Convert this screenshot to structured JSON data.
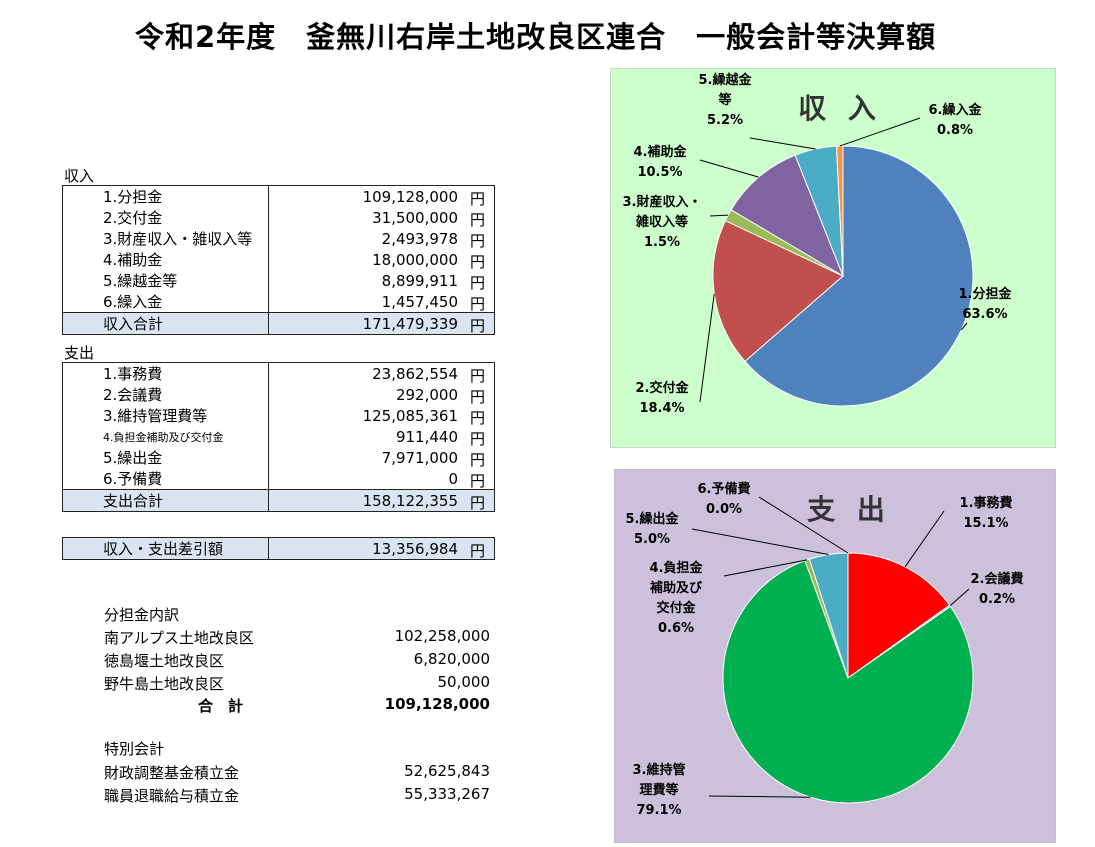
{
  "title": "令和2年度　釜無川右岸土地改良区連合　一般会計等決算額",
  "unit": "円",
  "income": {
    "label": "収入",
    "items": [
      {
        "name": "1.分担金",
        "amount": "109,128,000"
      },
      {
        "name": "2.交付金",
        "amount": "31,500,000"
      },
      {
        "name": "3.財産収入・雑収入等",
        "amount": "2,493,978"
      },
      {
        "name": "4.補助金",
        "amount": "18,000,000"
      },
      {
        "name": "5.繰越金等",
        "amount": "8,899,911"
      },
      {
        "name": "6.繰入金",
        "amount": "1,457,450"
      }
    ],
    "total_label": "収入合計",
    "total": "171,479,339"
  },
  "expense": {
    "label": "支出",
    "items": [
      {
        "name": "1.事務費",
        "amount": "23,862,554"
      },
      {
        "name": "2.会議費",
        "amount": "292,000"
      },
      {
        "name": "3.維持管理費等",
        "amount": "125,085,361"
      },
      {
        "name": "4.負担金補助及び交付金",
        "amount": "911,440"
      },
      {
        "name": "5.繰出金",
        "amount": "7,971,000"
      },
      {
        "name": "6.予備費",
        "amount": "0"
      }
    ],
    "total_label": "支出合計",
    "total": "158,122,355"
  },
  "balance": {
    "label": "収入・支出差引額",
    "amount": "13,356,984"
  },
  "share_breakdown": {
    "heading": "分担金内訳",
    "items": [
      {
        "name": "南アルプス土地改良区",
        "amount": "102,258,000"
      },
      {
        "name": "徳島堰土地改良区",
        "amount": "6,820,000"
      },
      {
        "name": "野牛島土地改良区",
        "amount": "50,000"
      }
    ],
    "total_label": "合　計",
    "total": "109,128,000"
  },
  "special": {
    "heading": "特別会計",
    "items": [
      {
        "name": "財政調整基金積立金",
        "amount": "52,625,843"
      },
      {
        "name": "職員退職給与積立金",
        "amount": "55,333,267"
      }
    ]
  },
  "chart_data": [
    {
      "type": "pie",
      "title": "収 入",
      "background": "#ccffcc",
      "slices": [
        {
          "label_lines": [
            "1.分担金"
          ],
          "pct": "63.6%",
          "value": 63.6,
          "color": "#4f81bd"
        },
        {
          "label_lines": [
            "2.交付金"
          ],
          "pct": "18.4%",
          "value": 18.4,
          "color": "#c0504d"
        },
        {
          "label_lines": [
            "3.財産収入・",
            "雑収入等"
          ],
          "pct": "1.5%",
          "value": 1.5,
          "color": "#9bbb59"
        },
        {
          "label_lines": [
            "4.補助金"
          ],
          "pct": "10.5%",
          "value": 10.5,
          "color": "#8064a2"
        },
        {
          "label_lines": [
            "5.繰越金",
            "等"
          ],
          "pct": "5.2%",
          "value": 5.2,
          "color": "#4bacc6"
        },
        {
          "label_lines": [
            "6.繰入金"
          ],
          "pct": "0.8%",
          "value": 0.8,
          "color": "#f79646"
        }
      ]
    },
    {
      "type": "pie",
      "title": "支 出",
      "background": "#ccc0da",
      "slices": [
        {
          "label_lines": [
            "1.事務費"
          ],
          "pct": "15.1%",
          "value": 15.1,
          "color": "#ff0000"
        },
        {
          "label_lines": [
            "2.会議費"
          ],
          "pct": "0.2%",
          "value": 0.2,
          "color": "#4f81bd"
        },
        {
          "label_lines": [
            "3.維持管",
            "理費等"
          ],
          "pct": "79.1%",
          "value": 79.1,
          "color": "#00b050"
        },
        {
          "label_lines": [
            "4.負担金",
            "補助及び",
            "交付金"
          ],
          "pct": "0.6%",
          "value": 0.6,
          "color": "#9bbb59"
        },
        {
          "label_lines": [
            "5.繰出金"
          ],
          "pct": "5.0%",
          "value": 5.0,
          "color": "#4bacc6"
        },
        {
          "label_lines": [
            "6.予備費"
          ],
          "pct": "0.0%",
          "value": 0.0,
          "color": "#f79646"
        }
      ]
    }
  ]
}
